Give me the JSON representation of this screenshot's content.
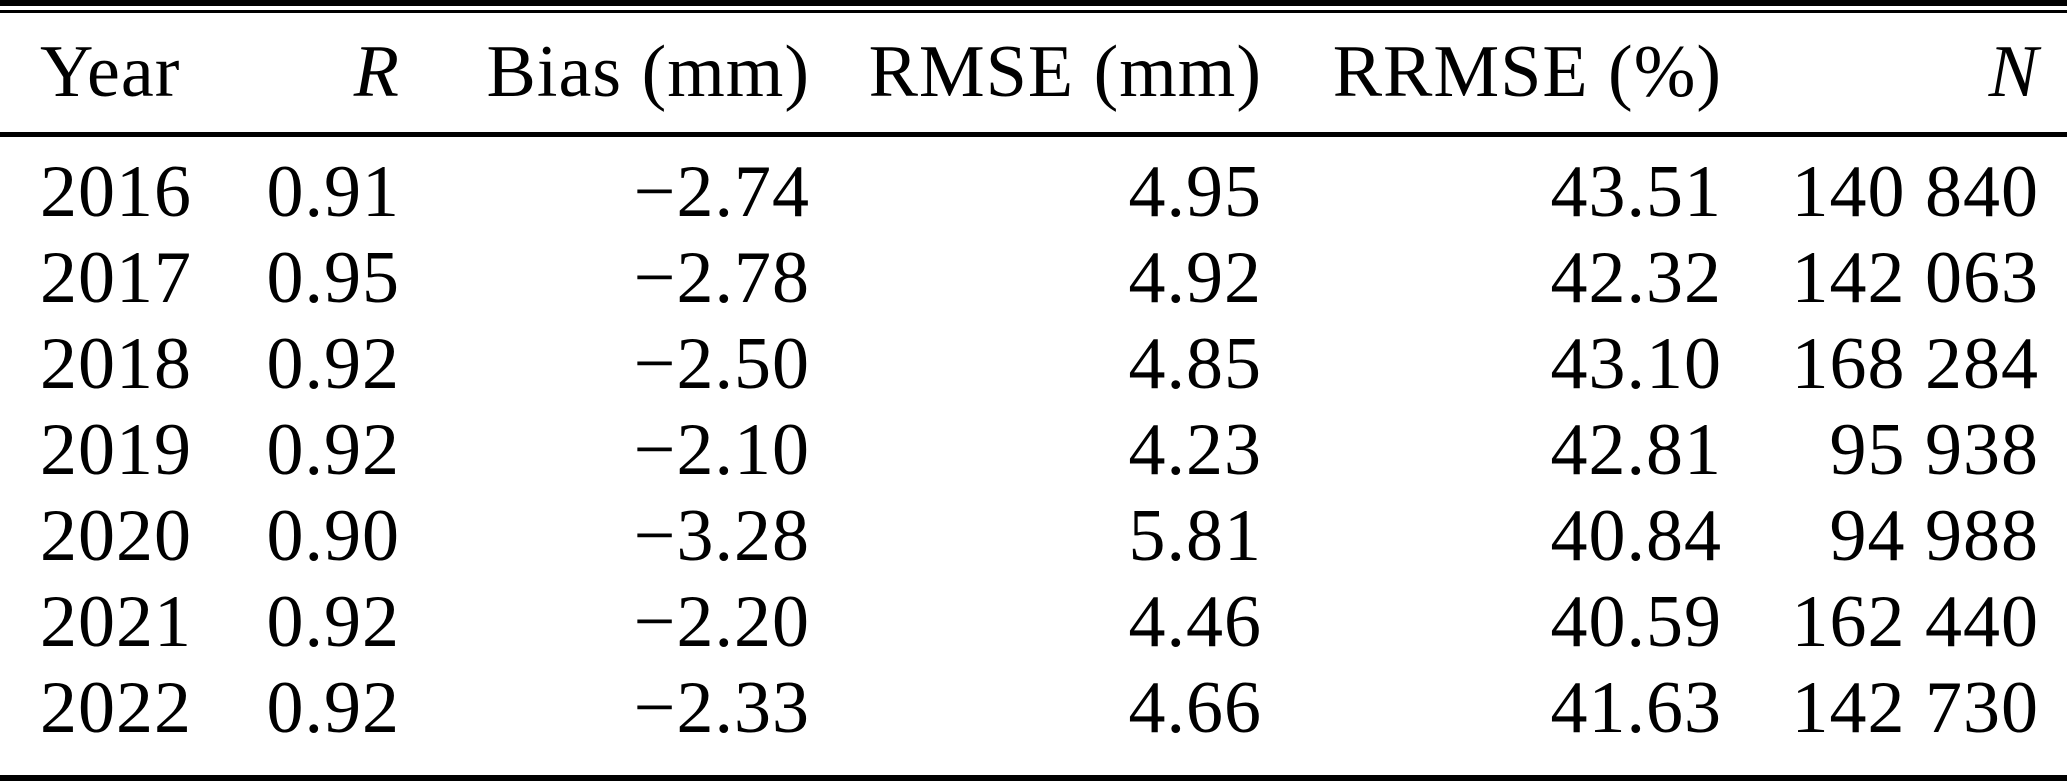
{
  "table": {
    "columns": [
      {
        "key": "year",
        "label": "Year",
        "style": "normal",
        "align": "left"
      },
      {
        "key": "r",
        "label": "R",
        "style": "italic",
        "align": "right"
      },
      {
        "key": "bias",
        "label": "Bias (mm)",
        "style": "normal",
        "align": "right"
      },
      {
        "key": "rmse",
        "label": "RMSE (mm)",
        "style": "normal",
        "align": "right"
      },
      {
        "key": "rrmse",
        "label": "RRMSE (%)",
        "style": "normal",
        "align": "right"
      },
      {
        "key": "n",
        "label": "N",
        "style": "italic",
        "align": "right"
      }
    ],
    "rows": [
      {
        "year": "2016",
        "r": "0.91",
        "bias": "−2.74",
        "rmse": "4.95",
        "rrmse": "43.51",
        "n": "140 840"
      },
      {
        "year": "2017",
        "r": "0.95",
        "bias": "−2.78",
        "rmse": "4.92",
        "rrmse": "42.32",
        "n": "142 063"
      },
      {
        "year": "2018",
        "r": "0.92",
        "bias": "−2.50",
        "rmse": "4.85",
        "rrmse": "43.10",
        "n": "168 284"
      },
      {
        "year": "2019",
        "r": "0.92",
        "bias": "−2.10",
        "rmse": "4.23",
        "rrmse": "42.81",
        "n": "95 938"
      },
      {
        "year": "2020",
        "r": "0.90",
        "bias": "−3.28",
        "rmse": "5.81",
        "rrmse": "40.84",
        "n": "94 988"
      },
      {
        "year": "2021",
        "r": "0.92",
        "bias": "−2.20",
        "rmse": "4.46",
        "rrmse": "40.59",
        "n": "162 440"
      },
      {
        "year": "2022",
        "r": "0.92",
        "bias": "−2.33",
        "rmse": "4.66",
        "rrmse": "41.63",
        "n": "142 730"
      }
    ]
  },
  "colors": {
    "text": "#000000",
    "background": "#ffffff",
    "rule": "#000000"
  }
}
